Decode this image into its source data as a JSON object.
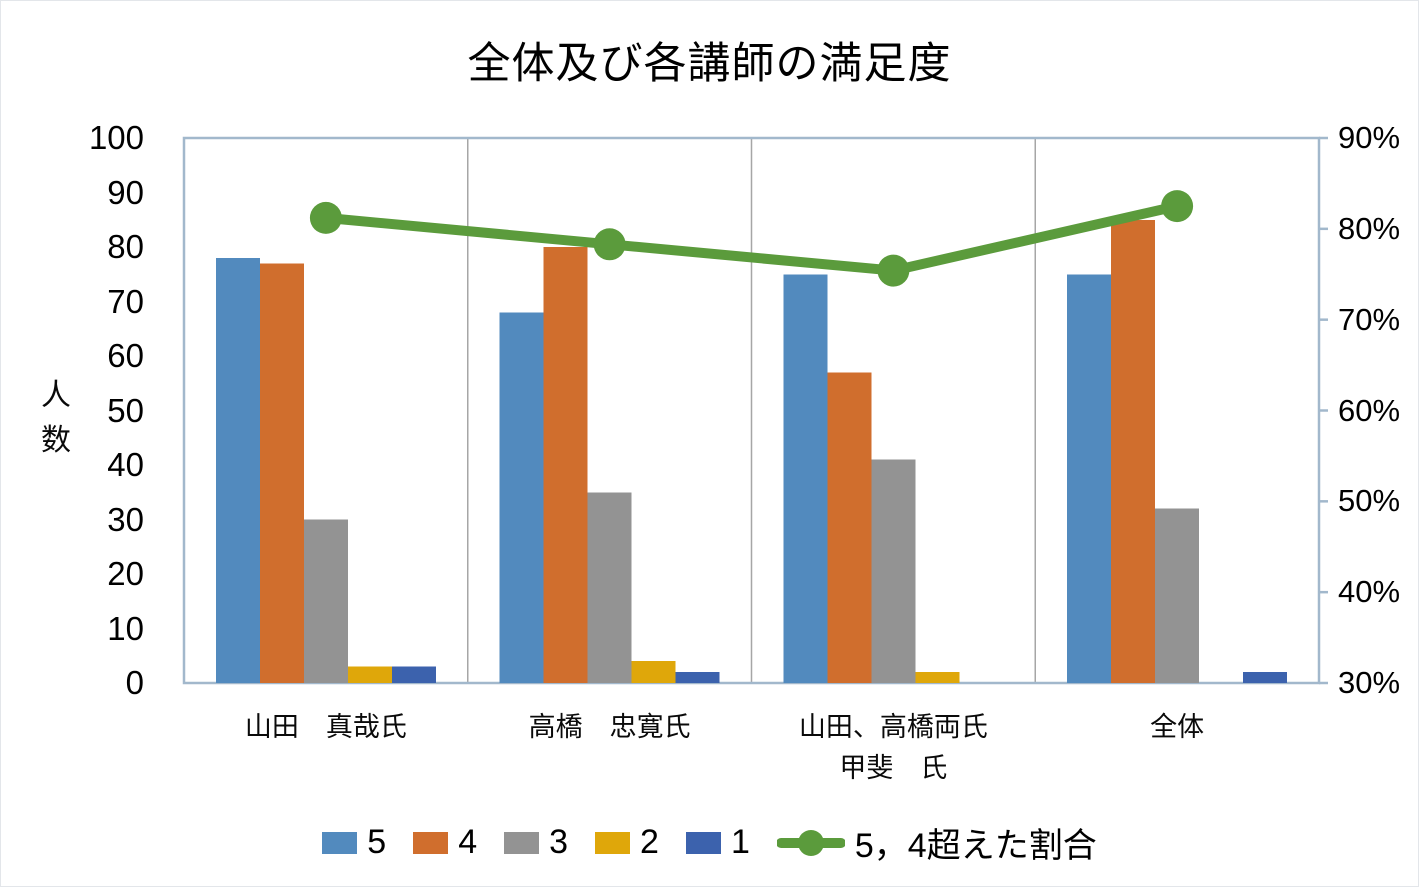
{
  "chart_data": {
    "type": "bar",
    "subtype": "grouped-bars-with-line-overlay",
    "title": "全体及び各講師の満足度",
    "categories": [
      [
        "山田　真哉氏"
      ],
      [
        "高橋　忠寛氏"
      ],
      [
        "山田、高橋両氏",
        "甲斐　氏"
      ],
      [
        "全体"
      ]
    ],
    "series": [
      {
        "name": "5",
        "type": "bar",
        "color": "#528ABE",
        "axis": "left",
        "values": [
          78,
          68,
          75,
          75
        ]
      },
      {
        "name": "4",
        "type": "bar",
        "color": "#D06E2D",
        "axis": "left",
        "values": [
          77,
          80,
          57,
          85
        ]
      },
      {
        "name": "3",
        "type": "bar",
        "color": "#939393",
        "axis": "left",
        "values": [
          30,
          35,
          41,
          32
        ]
      },
      {
        "name": "2",
        "type": "bar",
        "color": "#DFA70A",
        "axis": "left",
        "values": [
          3,
          4,
          2,
          0
        ]
      },
      {
        "name": "1",
        "type": "bar",
        "color": "#3C62AD",
        "axis": "left",
        "values": [
          3,
          2,
          0,
          2
        ]
      },
      {
        "name": "5，4超えた割合",
        "type": "line",
        "color": "#5B9B3C",
        "axis": "right",
        "values": [
          81.2,
          78.3,
          75.4,
          82.5
        ],
        "format": "percent"
      }
    ],
    "y_left": {
      "label": "人数",
      "min": 0,
      "max": 100,
      "step": 10
    },
    "y_right": {
      "label": "",
      "min": 30,
      "max": 90,
      "step": 10,
      "tick_suffix": "%"
    },
    "legend_position": "bottom",
    "grid": "vertical-category-separators",
    "colors": {
      "plot_border": "#A2B8CC",
      "category_separator": "#A6A6A6",
      "text": "#000000"
    }
  }
}
